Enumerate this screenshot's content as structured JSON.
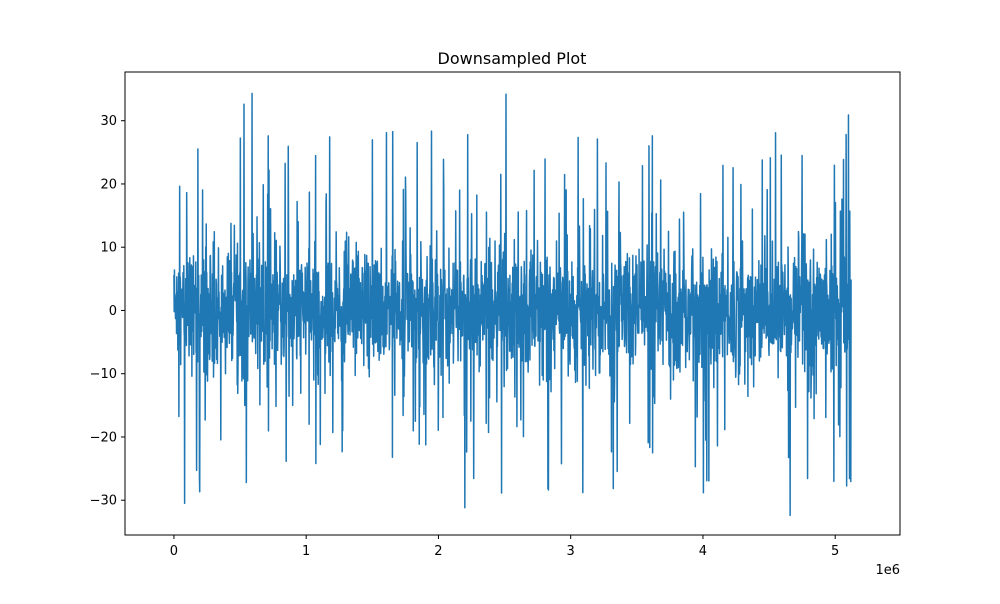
{
  "chart_data": {
    "type": "line",
    "title": "Downsampled Plot",
    "xlabel": "",
    "ylabel": "",
    "x_offset_label": "1e6",
    "xlim": [
      -370000,
      5490000
    ],
    "ylim": [
      -35.5,
      37.7
    ],
    "x_ticks": [
      {
        "value": 0,
        "label": "0"
      },
      {
        "value": 1000000,
        "label": "1"
      },
      {
        "value": 2000000,
        "label": "2"
      },
      {
        "value": 3000000,
        "label": "3"
      },
      {
        "value": 4000000,
        "label": "4"
      },
      {
        "value": 5000000,
        "label": "5"
      }
    ],
    "y_ticks": [
      {
        "value": -30,
        "label": "−30"
      },
      {
        "value": -20,
        "label": "−20"
      },
      {
        "value": -10,
        "label": "−10"
      },
      {
        "value": 0,
        "label": "0"
      },
      {
        "value": 10,
        "label": "10"
      },
      {
        "value": 20,
        "label": "20"
      },
      {
        "value": 30,
        "label": "30"
      }
    ],
    "grid": false,
    "legend": "none",
    "color": "#1f77b4",
    "x_range": [
      0,
      5120000
    ],
    "y_range": [
      -32.4,
      34.3
    ],
    "notable_peaks": [
      {
        "x": 530000,
        "y": 32.6
      },
      {
        "x": 590000,
        "y": 34.3
      },
      {
        "x": 2510000,
        "y": 34.2
      },
      {
        "x": 5100000,
        "y": 30.9
      }
    ],
    "notable_troughs": [
      {
        "x": 80000,
        "y": -30.5
      },
      {
        "x": 2200000,
        "y": -31.2
      },
      {
        "x": 4660000,
        "y": -32.4
      }
    ]
  }
}
